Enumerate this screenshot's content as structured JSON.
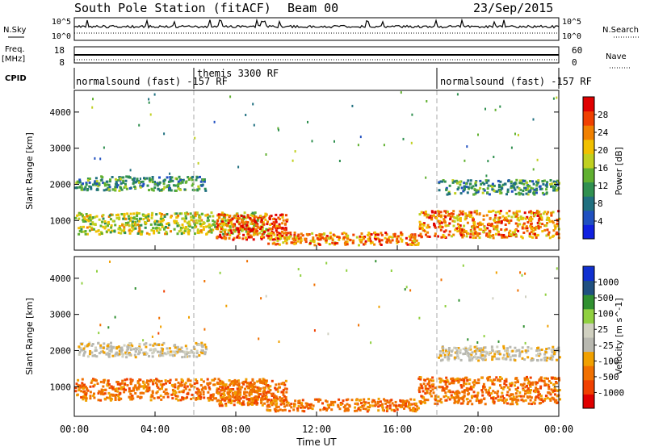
{
  "header": {
    "station": "South Pole Station (fitACF)",
    "beam": "Beam 00",
    "date": "23/Sep/2015"
  },
  "side_labels": {
    "nsky": "N.Sky",
    "freq": "Freq.",
    "freq_unit": "[MHz]",
    "cpid": "CPID",
    "nsearch": "N.Search",
    "nave": "Nave"
  },
  "cpid_segments": [
    {
      "label": "normalsound (fast) -157 RF",
      "start_hour": 0.0
    },
    {
      "label": "themis 3300 RF",
      "start_hour": 6.0
    },
    {
      "label": "normalsound (fast) -157 RF",
      "start_hour": 18.0
    }
  ],
  "colors": {
    "power": [
      "#1020e0",
      "#2050c0",
      "#207080",
      "#309050",
      "#60b030",
      "#c0d020",
      "#f0c000",
      "#f08000",
      "#f04000",
      "#e00000"
    ],
    "velocity": [
      "#e00000",
      "#f04000",
      "#f07000",
      "#f0a000",
      "#b8b8b0",
      "#d0d0c0",
      "#90d040",
      "#309030",
      "#205080",
      "#1030d0"
    ]
  },
  "chart_data": [
    {
      "type": "line",
      "panel": "nsky-nsearch",
      "ylim_left_labels": [
        "10^5",
        "10^0"
      ],
      "ylim_right_labels": [
        "10^5",
        "10^0"
      ],
      "xlim": [
        0,
        24
      ]
    },
    {
      "type": "line",
      "panel": "freq-nave",
      "left_ticks": [
        "18",
        "8"
      ],
      "right_ticks": [
        "60",
        "0"
      ],
      "xlim": [
        0,
        24
      ]
    },
    {
      "type": "heatmap",
      "panel": "power",
      "ylabel": "Slant Range [km]",
      "xlim": [
        0,
        24
      ],
      "ylim": [
        180,
        4600
      ],
      "yticks": [
        1000,
        2000,
        3000,
        4000
      ],
      "colorbar_label": "Power [dB]",
      "colorbar_ticks": [
        "4",
        "8",
        "12",
        "16",
        "20",
        "24",
        "28"
      ],
      "bands": [
        {
          "t0": 0.0,
          "t1": 6.5,
          "r0": 1850,
          "r1": 2250,
          "value": 12
        },
        {
          "t0": 0.0,
          "t1": 9.5,
          "r0": 650,
          "r1": 1250,
          "value": 16
        },
        {
          "t0": 7.0,
          "t1": 10.5,
          "r0": 500,
          "r1": 1200,
          "value": 26
        },
        {
          "t0": 9.5,
          "t1": 17.0,
          "r0": 350,
          "r1": 700,
          "value": 22
        },
        {
          "t0": 17.0,
          "t1": 24.0,
          "r0": 550,
          "r1": 1300,
          "value": 22
        },
        {
          "t0": 18.0,
          "t1": 24.0,
          "r0": 1750,
          "r1": 2150,
          "value": 10
        }
      ]
    },
    {
      "type": "heatmap",
      "panel": "velocity",
      "ylabel": "Slant Range [km]",
      "xlabel": "Time UT",
      "xlim": [
        0,
        24
      ],
      "ylim": [
        180,
        4600
      ],
      "yticks": [
        1000,
        2000,
        3000,
        4000
      ],
      "xtick_labels": [
        "00:00",
        "04:00",
        "08:00",
        "12:00",
        "16:00",
        "20:00",
        "00:00"
      ],
      "colorbar_label": "Velocity [m s^-1]",
      "colorbar_ticks": [
        "-1000",
        "-500",
        "-100",
        "-25",
        "25",
        "100",
        "500",
        "1000"
      ],
      "bands": [
        {
          "t0": 0.0,
          "t1": 6.5,
          "r0": 1850,
          "r1": 2250,
          "value": -5
        },
        {
          "t0": 0.0,
          "t1": 9.5,
          "r0": 650,
          "r1": 1250,
          "value": -150
        },
        {
          "t0": 7.0,
          "t1": 10.5,
          "r0": 500,
          "r1": 1200,
          "value": -200
        },
        {
          "t0": 9.5,
          "t1": 17.0,
          "r0": 350,
          "r1": 700,
          "value": -250
        },
        {
          "t0": 17.0,
          "t1": 24.0,
          "r0": 550,
          "r1": 1300,
          "value": -200
        },
        {
          "t0": 18.0,
          "t1": 24.0,
          "r0": 1750,
          "r1": 2150,
          "value": 5
        }
      ]
    }
  ]
}
